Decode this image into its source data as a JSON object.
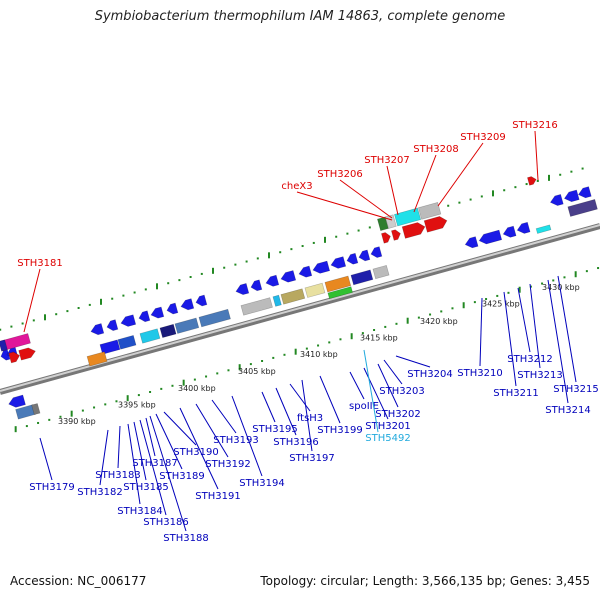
{
  "title": "Symbiobacterium thermophilum IAM 14863, complete genome",
  "accession_label": "Accession: NC_006177",
  "topology_label": "Topology: circular; Length: 3,566,135 bp; Genes: 3,455",
  "colors": {
    "upper_strand_label": "#dd0000",
    "lower_strand_label": "#0000bb",
    "rna_label": "#22aadd",
    "backbone": "#888888",
    "tick": "#228822"
  },
  "scale_labels": [
    "3390 kbp",
    "3395 kbp",
    "3400 kbp",
    "3405 kbp",
    "3410 kbp",
    "3415 kbp",
    "3420 kbp",
    "3425 kbp",
    "3430 kbp"
  ],
  "upper_gene_labels": [
    "STH3181",
    "cheX3",
    "STH3206",
    "STH3207",
    "STH3208",
    "STH3209",
    "STH3216"
  ],
  "lower_gene_labels": [
    "STH3179",
    "STH3182",
    "STH3183",
    "STH3184",
    "STH3185",
    "STH3186",
    "STH3187",
    "STH3188",
    "STH3189",
    "STH3190",
    "STH3191",
    "STH3192",
    "STH3193",
    "STH3194",
    "STH3195",
    "STH3196",
    "ftsH3",
    "STH3197",
    "STH3199",
    "spoIIE",
    "STH3201",
    "STH3202",
    "STH3203",
    "STH3204",
    "STH3210",
    "STH3211",
    "STH3212",
    "STH3213",
    "STH3214",
    "STH3215"
  ],
  "rna_gene_labels": [
    "STH5492"
  ]
}
